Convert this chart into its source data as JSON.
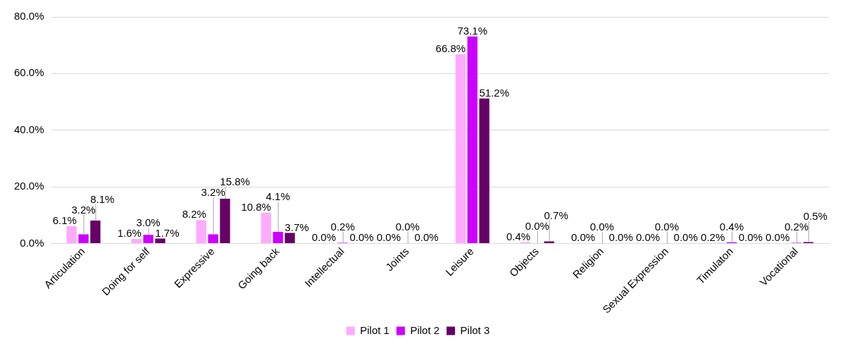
{
  "chart_data": {
    "type": "bar",
    "categories": [
      "Articulation",
      "Doing for self",
      "Expressive",
      "Going back",
      "Intellectual",
      "Joints",
      "Leisure",
      "Objects",
      "Religion",
      "Sexual Expression",
      "Timulaton",
      "Vocational"
    ],
    "series": [
      {
        "name": "Pilot 1",
        "color": "#ffaaff",
        "values": [
          6.1,
          1.6,
          8.2,
          10.8,
          0.0,
          0.0,
          66.8,
          0.4,
          0.0,
          0.0,
          0.2,
          0.0
        ],
        "value_labels": [
          "6.1%",
          "1.6%",
          "8.2%",
          "10.8%",
          "0.0%",
          "0.0%",
          "66.8%",
          "0.4%",
          "0.0%",
          "0.0%",
          "0.2%",
          "0.0%"
        ]
      },
      {
        "name": "Pilot 2",
        "color": "#cc00ff",
        "values": [
          3.2,
          3.0,
          3.2,
          4.1,
          0.2,
          0.0,
          73.1,
          0.0,
          0.0,
          0.0,
          0.4,
          0.2
        ],
        "value_labels": [
          "3.2%",
          "3.0%",
          "3.2%",
          "4.1%",
          "0.2%",
          "0.0%",
          "73.1%",
          "0.0%",
          "0.0%",
          "0.0%",
          "0.4%",
          "0.2%"
        ]
      },
      {
        "name": "Pilot 3",
        "color": "#660066",
        "values": [
          8.1,
          1.7,
          15.8,
          3.7,
          0.0,
          0.0,
          51.2,
          0.7,
          0.0,
          0.0,
          0.0,
          0.5
        ],
        "value_labels": [
          "8.1%",
          "1.7%",
          "15.8%",
          "3.7%",
          "0.0%",
          "0.0%",
          "51.2%",
          "0.7%",
          "0.0%",
          "0.0%",
          "0.0%",
          "0.5%"
        ]
      }
    ],
    "ylim": [
      0,
      80
    ],
    "yticks": [
      {
        "value": 0,
        "label": "0.0%"
      },
      {
        "value": 20,
        "label": "20.0%"
      },
      {
        "value": 40,
        "label": "40.0%"
      },
      {
        "value": 60,
        "label": "60.0%"
      },
      {
        "value": 80,
        "label": "80.0%"
      }
    ],
    "grid": "y",
    "legend": "bottom"
  }
}
